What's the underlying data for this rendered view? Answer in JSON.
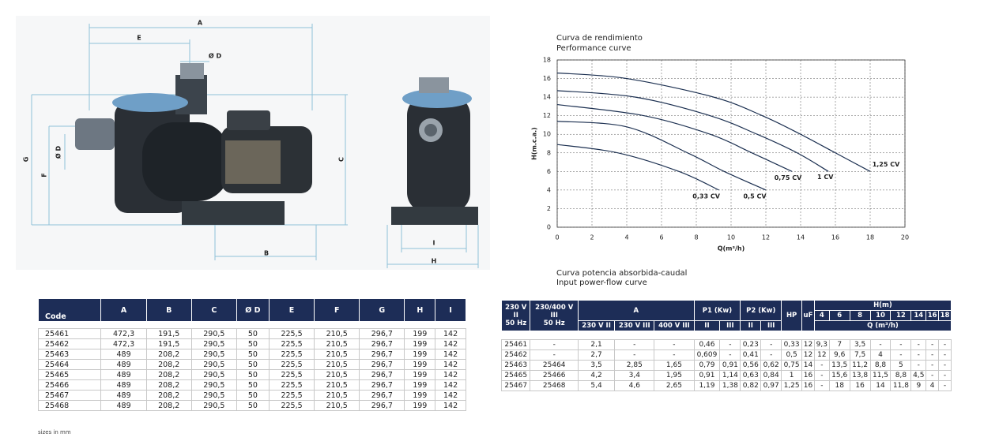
{
  "drawing": {
    "labels": [
      "A",
      "E",
      "Ø D",
      "G",
      "F",
      "Ø D",
      "C",
      "B",
      "I",
      "H"
    ]
  },
  "chart_data": {
    "type": "line",
    "title": "Curva de rendimiento",
    "subtitle": "Performance curve",
    "xlabel": "Q(m³/h)",
    "ylabel": "H(m.c.a.)",
    "xlim": [
      0,
      20
    ],
    "xticks": [
      0,
      2,
      4,
      6,
      8,
      10,
      12,
      14,
      16,
      18,
      20
    ],
    "ylim": [
      0,
      18
    ],
    "yticks": [
      0,
      2,
      4,
      6,
      8,
      10,
      12,
      14,
      16,
      18
    ],
    "grid": true,
    "series": [
      {
        "name": "0,33 CV",
        "color": "#1b2f50",
        "x": [
          0,
          3.5,
          7,
          9.3
        ],
        "values": [
          8.9,
          8,
          6,
          4
        ]
      },
      {
        "name": "0,5 CV",
        "color": "#1b2f50",
        "x": [
          0,
          4,
          7.5,
          9.6,
          12
        ],
        "values": [
          11.4,
          10.8,
          8,
          6,
          4
        ]
      },
      {
        "name": "0,75 CV",
        "color": "#1b2f50",
        "x": [
          0,
          5,
          8.8,
          11.2,
          13.5
        ],
        "values": [
          13.2,
          12,
          10,
          8,
          6
        ]
      },
      {
        "name": "1 CV",
        "color": "#1b2f50",
        "x": [
          0,
          4.5,
          8.8,
          11.5,
          13.8,
          15.6
        ],
        "values": [
          14.7,
          14,
          12,
          10,
          8,
          6
        ]
      },
      {
        "name": "1,25 CV",
        "color": "#1b2f50",
        "x": [
          0,
          4,
          9,
          11.8,
          14,
          16,
          18
        ],
        "values": [
          16.6,
          16,
          14,
          12,
          10,
          8,
          6
        ]
      }
    ]
  },
  "power_curve_heading": {
    "title": "Curva potencia absorbida-caudal",
    "subtitle": "Input power-flow curve"
  },
  "dimensions_table": {
    "header": [
      "Code",
      "A",
      "B",
      "C",
      "Ø D",
      "E",
      "F",
      "G",
      "H",
      "I"
    ],
    "rows": [
      [
        "25461",
        "472,3",
        "191,5",
        "290,5",
        "50",
        "225,5",
        "210,5",
        "296,7",
        "199",
        "142"
      ],
      [
        "25462",
        "472,3",
        "191,5",
        "290,5",
        "50",
        "225,5",
        "210,5",
        "296,7",
        "199",
        "142"
      ],
      [
        "25463",
        "489",
        "208,2",
        "290,5",
        "50",
        "225,5",
        "210,5",
        "296,7",
        "199",
        "142"
      ],
      [
        "25464",
        "489",
        "208,2",
        "290,5",
        "50",
        "225,5",
        "210,5",
        "296,7",
        "199",
        "142"
      ],
      [
        "25465",
        "489",
        "208,2",
        "290,5",
        "50",
        "225,5",
        "210,5",
        "296,7",
        "199",
        "142"
      ],
      [
        "25466",
        "489",
        "208,2",
        "290,5",
        "50",
        "225,5",
        "210,5",
        "296,7",
        "199",
        "142"
      ],
      [
        "25467",
        "489",
        "208,2",
        "290,5",
        "50",
        "225,5",
        "210,5",
        "296,7",
        "199",
        "142"
      ],
      [
        "25468",
        "489",
        "208,2",
        "290,5",
        "50",
        "225,5",
        "210,5",
        "296,7",
        "199",
        "142"
      ]
    ]
  },
  "performance_table": {
    "header": {
      "col1": "230 V\nII\n50 Hz",
      "col2": "230/400 V\nIII\n50 Hz",
      "a": "A",
      "a_sub": [
        "230 V II",
        "230 V III",
        "400 V III"
      ],
      "p1": "P1 (Kw)",
      "p1_sub": [
        "II",
        "III"
      ],
      "p2": "P2 (Kw)",
      "p2_sub": [
        "II",
        "III"
      ],
      "hp": "HP",
      "uf": "uF",
      "h": "H(m)",
      "h_values": [
        "4",
        "6",
        "8",
        "10",
        "12",
        "14",
        "16",
        "18"
      ],
      "q": "Q (m³/h)"
    },
    "rows": [
      [
        "25461",
        "-",
        "2,1",
        "-",
        "-",
        "0,46",
        "-",
        "0,23",
        "-",
        "0,33",
        "12",
        "9,3",
        "7",
        "3,5",
        "-",
        "-",
        "-",
        "-",
        "-"
      ],
      [
        "25462",
        "-",
        "2,7",
        "-",
        "-",
        "0,609",
        "-",
        "0,41",
        "-",
        "0,5",
        "12",
        "12",
        "9,6",
        "7,5",
        "4",
        "-",
        "-",
        "-",
        "-"
      ],
      [
        "25463",
        "25464",
        "3,5",
        "2,85",
        "1,65",
        "0,79",
        "0,91",
        "0,56",
        "0,62",
        "0,75",
        "14",
        "-",
        "13,5",
        "11,2",
        "8,8",
        "5",
        "-",
        "-",
        "-"
      ],
      [
        "25465",
        "25466",
        "4,2",
        "3,4",
        "1,95",
        "0,91",
        "1,14",
        "0,63",
        "0,84",
        "1",
        "16",
        "-",
        "15,6",
        "13,8",
        "11,5",
        "8,8",
        "4,5",
        "-",
        "-"
      ],
      [
        "25467",
        "25468",
        "5,4",
        "4,6",
        "2,65",
        "1,19",
        "1,38",
        "0,82",
        "0,97",
        "1,25",
        "16",
        "-",
        "18",
        "16",
        "14",
        "11,8",
        "9",
        "4",
        "-"
      ]
    ]
  },
  "note": "sizes in mm"
}
